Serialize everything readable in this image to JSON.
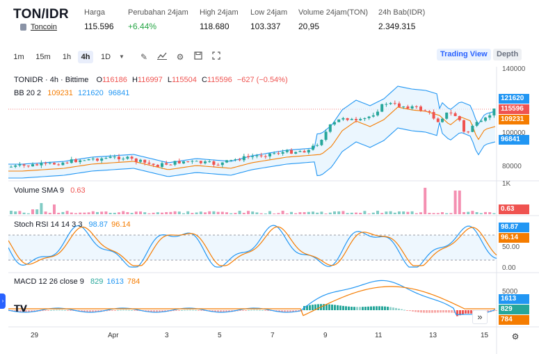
{
  "header": {
    "pair": "TON/IDR",
    "coin_link": "Toncoin",
    "stats": [
      {
        "label": "Harga",
        "value": "115.596"
      },
      {
        "label": "Perubahan 24jam",
        "value": "+6.44%"
      },
      {
        "label": "High 24jam",
        "value": "118.680"
      },
      {
        "label": "Low 24jam",
        "value": "103.337"
      },
      {
        "label": "Volume 24jam(TON)",
        "value": "20,95"
      },
      {
        "label": "24h Bab(IDR)",
        "value": "2.349.315"
      }
    ]
  },
  "toolbar": {
    "timeframes": [
      "1m",
      "15m",
      "1h",
      "4h",
      "1D"
    ],
    "active_timeframe": "4h",
    "trading_view": "Trading View",
    "depth": "Depth"
  },
  "legend": {
    "symbol": "TONIDR · 4h · Bittime",
    "o_label": "O",
    "o_val": "116186",
    "h_label": "H",
    "h_val": "116997",
    "l_label": "L",
    "l_val": "115504",
    "c_label": "C",
    "c_val": "115596",
    "change": "−627 (−0.54%)",
    "bb_name": "BB 20 2",
    "bb_basis": "109231",
    "bb_upper": "121620",
    "bb_lower": "96841",
    "vol_name": "Volume SMA 9",
    "vol_val": "0.63",
    "stoch_name": "Stoch RSI 14 14 3 3",
    "stoch_k": "98.87",
    "stoch_d": "96.14",
    "macd_name": "MACD 12 26 close 9",
    "macd_hist": "829",
    "macd_line": "1613",
    "macd_signal": "784"
  },
  "axis": {
    "price_ticks": [
      "140000",
      "100000",
      "80000"
    ],
    "price_tags": {
      "upper": "121620",
      "last": "115596",
      "basis": "109231",
      "lower": "96841"
    },
    "vol_tick": "1K",
    "vol_tag": "0.63",
    "stoch_ticks": [
      "50.00",
      "0.00"
    ],
    "stoch_tags": {
      "k": "98.87",
      "d": "96.14"
    },
    "macd_tick": "5000",
    "macd_tags": {
      "line": "1613",
      "hist": "829",
      "signal": "784"
    },
    "x_labels": [
      "29",
      "Apr",
      "3",
      "5",
      "7",
      "9",
      "11",
      "13",
      "15"
    ]
  },
  "colors": {
    "up": "#26a69a",
    "down": "#ef5350",
    "bb_basis": "#f57c00",
    "bb_band": "#2196f3",
    "stoch_k": "#2196f3",
    "stoch_d": "#f57c00"
  }
}
